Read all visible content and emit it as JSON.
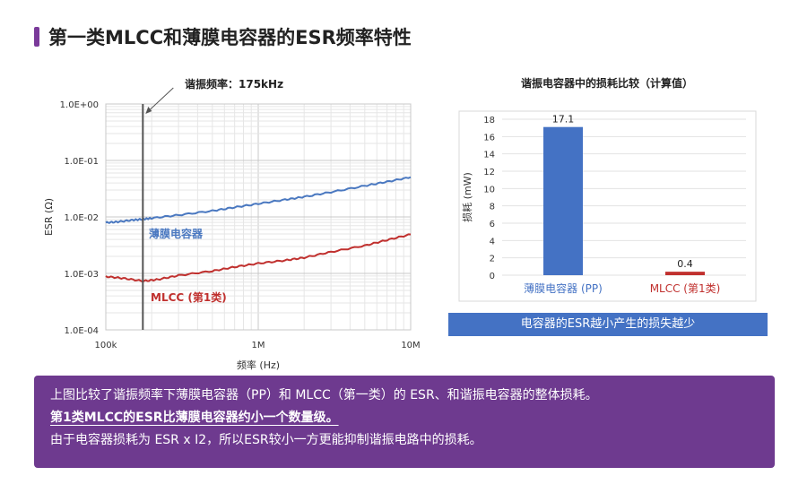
{
  "page": {
    "title": "第一类MLCC和薄膜电容器的ESR频率特性"
  },
  "chart_data": [
    {
      "type": "line",
      "title": "",
      "xlabel": "频率 (Hz)",
      "ylabel": "ESR (Ω)",
      "x_scale": "log",
      "y_scale": "log",
      "xlim": [
        100000,
        10000000
      ],
      "ylim": [
        0.0001,
        1
      ],
      "x_ticks": [
        "100k",
        "1M",
        "10M"
      ],
      "y_ticks": [
        "1.0E+00",
        "1.0E-01",
        "1.0E-02",
        "1.0E-03",
        "1.0E-04"
      ],
      "grid": true,
      "annotation": {
        "text": "谐振频率：175kHz",
        "x": 175000
      },
      "series": [
        {
          "name": "薄膜电容器",
          "color": "#4a78c0",
          "points": [
            [
              100000,
              0.0079
            ],
            [
              120000,
              0.0082
            ],
            [
              150000,
              0.0088
            ],
            [
              175000,
              0.0091
            ],
            [
              200000,
              0.0095
            ],
            [
              300000,
              0.0108
            ],
            [
              500000,
              0.0128
            ],
            [
              700000,
              0.0148
            ],
            [
              1000000,
              0.0171
            ],
            [
              1500000,
              0.0202
            ],
            [
              2000000,
              0.0227
            ],
            [
              3000000,
              0.0275
            ],
            [
              5000000,
              0.0355
            ],
            [
              7000000,
              0.042
            ],
            [
              10000000,
              0.0505
            ]
          ]
        },
        {
          "name": "MLCC (第1类)",
          "color": "#c0302e",
          "points": [
            [
              100000,
              0.00088
            ],
            [
              130000,
              0.00082
            ],
            [
              175000,
              0.00073
            ],
            [
              220000,
              0.00078
            ],
            [
              300000,
              0.00092
            ],
            [
              500000,
              0.0011
            ],
            [
              700000,
              0.0013
            ],
            [
              1000000,
              0.0015
            ],
            [
              1500000,
              0.0017
            ],
            [
              2000000,
              0.0019
            ],
            [
              3000000,
              0.0024
            ],
            [
              5000000,
              0.0031
            ],
            [
              7000000,
              0.0039
            ],
            [
              10000000,
              0.0049
            ]
          ]
        }
      ]
    },
    {
      "type": "bar",
      "title": "谐振电容器中的损耗比较（计算值）",
      "xlabel": "",
      "ylabel": "损耗 (mW)",
      "ylim": [
        0,
        18
      ],
      "y_ticks": [
        0,
        2,
        4,
        6,
        8,
        10,
        12,
        14,
        16,
        18
      ],
      "grid": true,
      "categories": [
        "薄膜电容器 (PP)",
        "MLCC (第1类)"
      ],
      "values": [
        17.1,
        0.4
      ],
      "value_labels": [
        "17.1",
        "0.4"
      ],
      "colors": [
        "#4472c4",
        "#c0302e"
      ]
    }
  ],
  "banner": {
    "text": "电容器的ESR越小产生的损失越少"
  },
  "note": {
    "line1": "上图比较了谐振频率下薄膜电容器（PP）和 MLCC（第一类）的 ESR、和谐振电容器的整体损耗。",
    "line2": "第1类MLCC的ESR比薄膜电容器约小一个数量级。",
    "line3": "由于电容器损耗为 ESR x I2，所以ESR较小一方更能抑制谐振电路中的损耗。"
  },
  "colors": {
    "accent": "#7a3a9a",
    "note_bg": "#6e3a8f",
    "banner_bg": "#4472c4"
  }
}
